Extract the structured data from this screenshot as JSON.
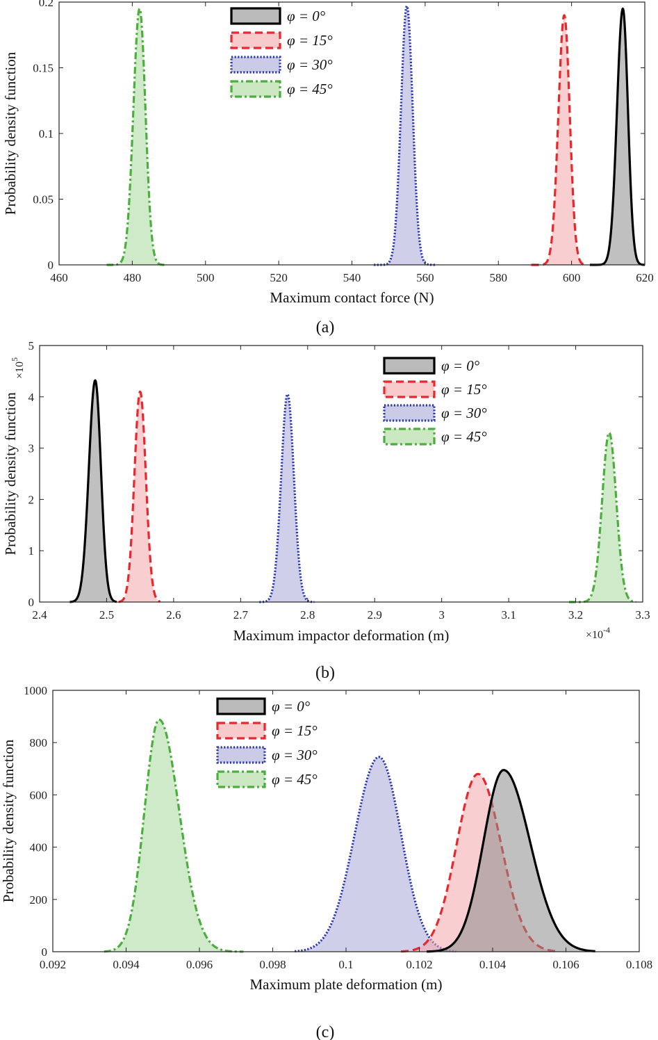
{
  "figure_title": "PDF comparisons for different impact angles",
  "colors": {
    "phi0_stroke": "#000000",
    "phi0_fill": "#8c8c8c",
    "phi15_stroke": "#e8282d",
    "phi15_fill": "#f4a6aa",
    "phi30_stroke": "#2b3aa8",
    "phi30_fill": "#a9a8d8",
    "phi45_stroke": "#4cae3e",
    "phi45_fill": "#a8d99a"
  },
  "chart_data": [
    {
      "id": "a",
      "type": "area",
      "caption": "(a)",
      "xlabel": "Maximum contact force (N)",
      "ylabel": "Probability density function",
      "xlim": [
        460,
        620
      ],
      "ylim": [
        0,
        0.2
      ],
      "xticks": [
        460,
        480,
        500,
        520,
        540,
        560,
        580,
        600,
        620
      ],
      "xtick_labels": [
        "460",
        "480",
        "500",
        "520",
        "540",
        "560",
        "580",
        "600",
        "620"
      ],
      "yticks": [
        0,
        0.05,
        0.1,
        0.15,
        0.2
      ],
      "ytick_labels": [
        "0",
        "0.05",
        "0.1",
        "0.15",
        "0.2"
      ],
      "x_multiplier": "",
      "y_multiplier": "",
      "legend_position": "top-center",
      "series": [
        {
          "name": "φ = 0°",
          "style": "solid",
          "peak": 614,
          "height": 0.195,
          "left_width": 1.6,
          "right_width": 1.4,
          "range": [
            605,
            620
          ]
        },
        {
          "name": "φ = 15°",
          "style": "dashed",
          "peak": 598,
          "height": 0.19,
          "left_width": 1.6,
          "right_width": 1.5,
          "range": [
            589,
            604
          ]
        },
        {
          "name": "φ = 30°",
          "style": "dotted",
          "peak": 555,
          "height": 0.197,
          "left_width": 1.6,
          "right_width": 1.6,
          "range": [
            546,
            563
          ]
        },
        {
          "name": "φ = 45°",
          "style": "dashdot",
          "peak": 482,
          "height": 0.195,
          "left_width": 1.7,
          "right_width": 1.6,
          "range": [
            473,
            489
          ]
        }
      ]
    },
    {
      "id": "b",
      "type": "area",
      "caption": "(b)",
      "xlabel": "Maximum impactor deformation (m)",
      "ylabel": "Probability density function",
      "xlim": [
        2.4,
        3.3
      ],
      "ylim": [
        0,
        5
      ],
      "xticks": [
        2.4,
        2.5,
        2.6,
        2.7,
        2.8,
        2.9,
        3.0,
        3.1,
        3.2,
        3.3
      ],
      "xtick_labels": [
        "2.4",
        "2.5",
        "2.6",
        "2.7",
        "2.8",
        "2.9",
        "3",
        "3.1",
        "3.2",
        "3.3"
      ],
      "yticks": [
        0,
        1,
        2,
        3,
        4,
        5
      ],
      "ytick_labels": [
        "0",
        "1",
        "2",
        "3",
        "4",
        "5"
      ],
      "x_multiplier": "×10",
      "x_multiplier_exp": "-4",
      "y_multiplier": "×10",
      "y_multiplier_exp": "5",
      "legend_position": "top-right",
      "series": [
        {
          "name": "φ = 0°",
          "style": "solid",
          "peak": 2.483,
          "height": 4.32,
          "left_width": 0.0095,
          "right_width": 0.0085,
          "range": [
            2.445,
            2.515
          ]
        },
        {
          "name": "φ = 15°",
          "style": "dashed",
          "peak": 2.55,
          "height": 4.1,
          "left_width": 0.0085,
          "right_width": 0.0085,
          "range": [
            2.518,
            2.58
          ]
        },
        {
          "name": "φ = 30°",
          "style": "dotted",
          "peak": 2.77,
          "height": 4.05,
          "left_width": 0.0095,
          "right_width": 0.0095,
          "range": [
            2.728,
            2.81
          ]
        },
        {
          "name": "φ = 45°",
          "style": "dashdot",
          "peak": 3.25,
          "height": 3.3,
          "left_width": 0.0105,
          "right_width": 0.0105,
          "range": [
            3.19,
            3.29
          ]
        }
      ]
    },
    {
      "id": "c",
      "type": "area",
      "caption": "(c)",
      "xlabel": "Maximum plate deformation (m)",
      "ylabel": "Probability density function",
      "xlim": [
        0.092,
        0.108
      ],
      "ylim": [
        0,
        1000
      ],
      "xticks": [
        0.092,
        0.094,
        0.096,
        0.098,
        0.1,
        0.102,
        0.104,
        0.106,
        0.108
      ],
      "xtick_labels": [
        "0.092",
        "0.094",
        "0.096",
        "0.098",
        "0.1",
        "0.102",
        "0.104",
        "0.106",
        "0.108"
      ],
      "yticks": [
        0,
        200,
        400,
        600,
        800,
        1000
      ],
      "ytick_labels": [
        "0",
        "200",
        "400",
        "600",
        "800",
        "1000"
      ],
      "x_multiplier": "",
      "y_multiplier": "",
      "legend_position": "top-left",
      "series": [
        {
          "name": "φ = 0°",
          "style": "solid",
          "peak": 0.1043,
          "height": 695,
          "left_width": 0.00055,
          "right_width": 0.00072,
          "range": [
            0.1022,
            0.1068
          ]
        },
        {
          "name": "φ = 15°",
          "style": "dashed",
          "peak": 0.1036,
          "height": 680,
          "left_width": 0.00058,
          "right_width": 0.00063,
          "range": [
            0.1015,
            0.1058
          ]
        },
        {
          "name": "φ = 30°",
          "style": "dotted",
          "peak": 0.1009,
          "height": 745,
          "left_width": 0.00066,
          "right_width": 0.0006,
          "range": [
            0.0986,
            0.103
          ]
        },
        {
          "name": "φ = 45°",
          "style": "dashdot",
          "peak": 0.0949,
          "height": 888,
          "left_width": 0.0004,
          "right_width": 0.00055,
          "range": [
            0.0934,
            0.0972
          ]
        }
      ]
    }
  ]
}
